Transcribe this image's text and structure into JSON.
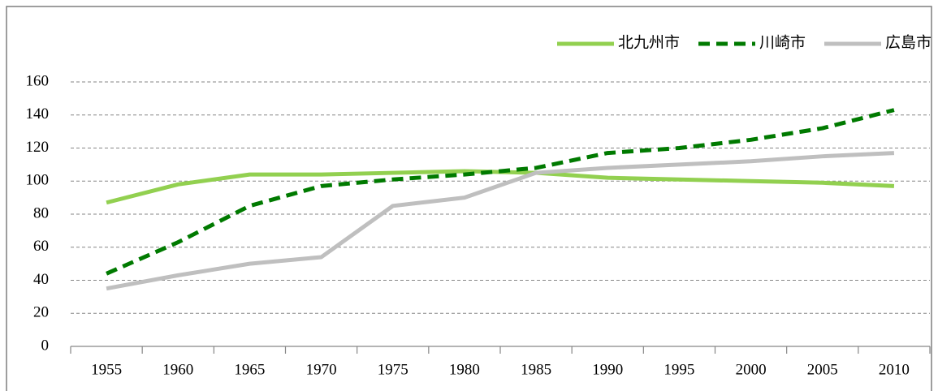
{
  "chart_data": {
    "type": "line",
    "categories": [
      "1955",
      "1960",
      "1965",
      "1970",
      "1975",
      "1980",
      "1985",
      "1990",
      "1995",
      "2000",
      "2005",
      "2010"
    ],
    "series": [
      {
        "name": "北九州市",
        "color": "#92d050",
        "line_style": "solid",
        "values": [
          87,
          98,
          104,
          104,
          105,
          106,
          105,
          102,
          101,
          100,
          99,
          97
        ]
      },
      {
        "name": "川崎市",
        "color": "#007a00",
        "line_style": "dashed",
        "values": [
          44,
          63,
          85,
          97,
          101,
          104,
          108,
          117,
          120,
          125,
          132,
          143
        ]
      },
      {
        "name": "広島市",
        "color": "#bfbfbf",
        "line_style": "solid",
        "values": [
          35,
          43,
          50,
          54,
          85,
          90,
          105,
          108,
          110,
          112,
          115,
          117
        ]
      }
    ],
    "ylim": [
      0,
      160
    ],
    "yticks": [
      0,
      20,
      40,
      60,
      80,
      100,
      120,
      140,
      160
    ],
    "grid": true,
    "legend": "top-right"
  }
}
